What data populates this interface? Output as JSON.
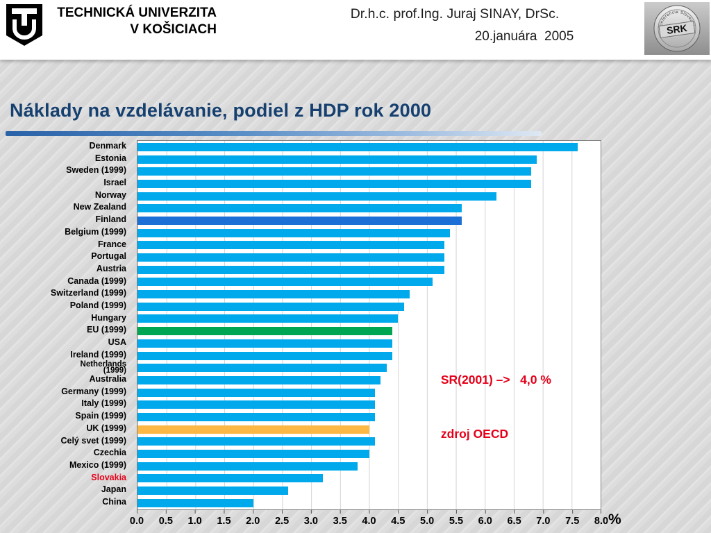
{
  "header": {
    "university": {
      "line1": "TECHNICKÁ UNIVERZITA",
      "line2": "V KOŠICIACH"
    },
    "speaker": "Dr.h.c. prof.Ing. Juraj SINAY, DrSc.",
    "date": "20.januára  2005",
    "badge": {
      "label": "SRK",
      "ring_text": "konferencia Slovenska"
    }
  },
  "title": "Náklady na vzdelávanie, podiel z HDP rok 2000",
  "annotation": {
    "line1": "SR(2001) –>   4,0 %",
    "line2": "zdroj OECD"
  },
  "chart_data": {
    "type": "bar",
    "orientation": "horizontal",
    "title": "Náklady na vzdelávanie, podiel z HDP rok 2000",
    "xlabel": "%",
    "unit_label": "%",
    "xlim": [
      0,
      8
    ],
    "grid": true,
    "x_ticks": [
      "0.0",
      "0.5",
      "1.0",
      "1.5",
      "2.0",
      "2.5",
      "3.0",
      "3.5",
      "4.0",
      "4.5",
      "5.0",
      "5.5",
      "6.0",
      "6.5",
      "7.0",
      "7.5",
      "8.0"
    ],
    "categories": [
      "Denmark",
      "Estonia",
      "Sweden (1999)",
      "Israel",
      "Norway",
      "New Zealand",
      "Finland",
      "Belgium (1999)",
      "France",
      "Portugal",
      "Austria",
      "Canada (1999)",
      "Switzerland (1999)",
      "Poland (1999)",
      "Hungary",
      "EU (1999)",
      "USA",
      "Ireland (1999)",
      [
        "Netherlands",
        "(1999)"
      ],
      "Australia",
      "Germany (1999)",
      "Italy (1999)",
      "Spain (1999)",
      "UK (1999)",
      "Celý svet (1999)",
      "Czechia",
      "Mexico (1999)",
      "Slovakia",
      "Japan",
      "China"
    ],
    "values": [
      7.6,
      6.9,
      6.8,
      6.8,
      6.2,
      5.6,
      5.6,
      5.4,
      5.3,
      5.3,
      5.3,
      5.1,
      4.7,
      4.6,
      4.5,
      4.4,
      4.4,
      4.4,
      4.3,
      4.2,
      4.1,
      4.1,
      4.1,
      4.0,
      4.1,
      4.0,
      3.8,
      3.2,
      2.6,
      2.0
    ],
    "bar_color_default": "#00a8ec",
    "highlight_colors": {
      "Finland": "#1c6fd5",
      "EU (1999)": "#00a651",
      "UK (1999)": "#fcb844"
    },
    "label_colors": {
      "Slovakia": "#e50019"
    }
  }
}
